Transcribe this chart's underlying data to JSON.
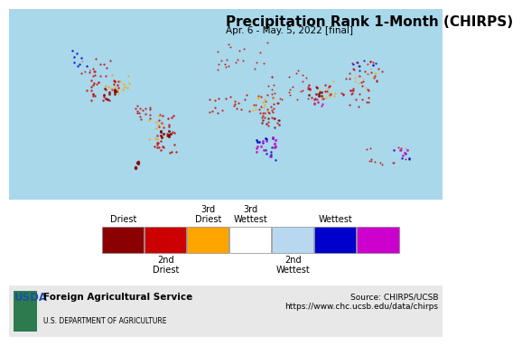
{
  "title": "Precipitation Rank 1-Month (CHIRPS)",
  "subtitle": "Apr. 6 - May. 5, 2022 [final]",
  "title_fontsize": 11,
  "subtitle_fontsize": 7.5,
  "map_bg_color": "#a8d8ea",
  "legend_colors": [
    "#8b0000",
    "#cc0000",
    "#ffa500",
    "#ffffff",
    "#b8d8f0",
    "#0000cc",
    "#cc00cc"
  ],
  "legend_top_labels": [
    "Driest",
    "",
    "3rd\nDriest",
    "3rd\nWettest",
    "",
    "Wettest",
    ""
  ],
  "legend_bottom_labels": [
    "",
    "2nd\nDriest",
    "",
    "",
    "2nd\nWettest",
    "",
    ""
  ],
  "footer_left_bold": "Foreign Agricultural Service",
  "footer_left_small": "U.S. DEPARTMENT OF AGRICULTURE",
  "footer_right_text": "Source: CHIRPS/UCSB\nhttps://www.chc.ucsb.edu/data/chirps",
  "footer_bg_color": "#e8e8e8",
  "land_color": "#ffffff",
  "land_border_color": "#333333",
  "legend_label_fontsize": 7.0
}
